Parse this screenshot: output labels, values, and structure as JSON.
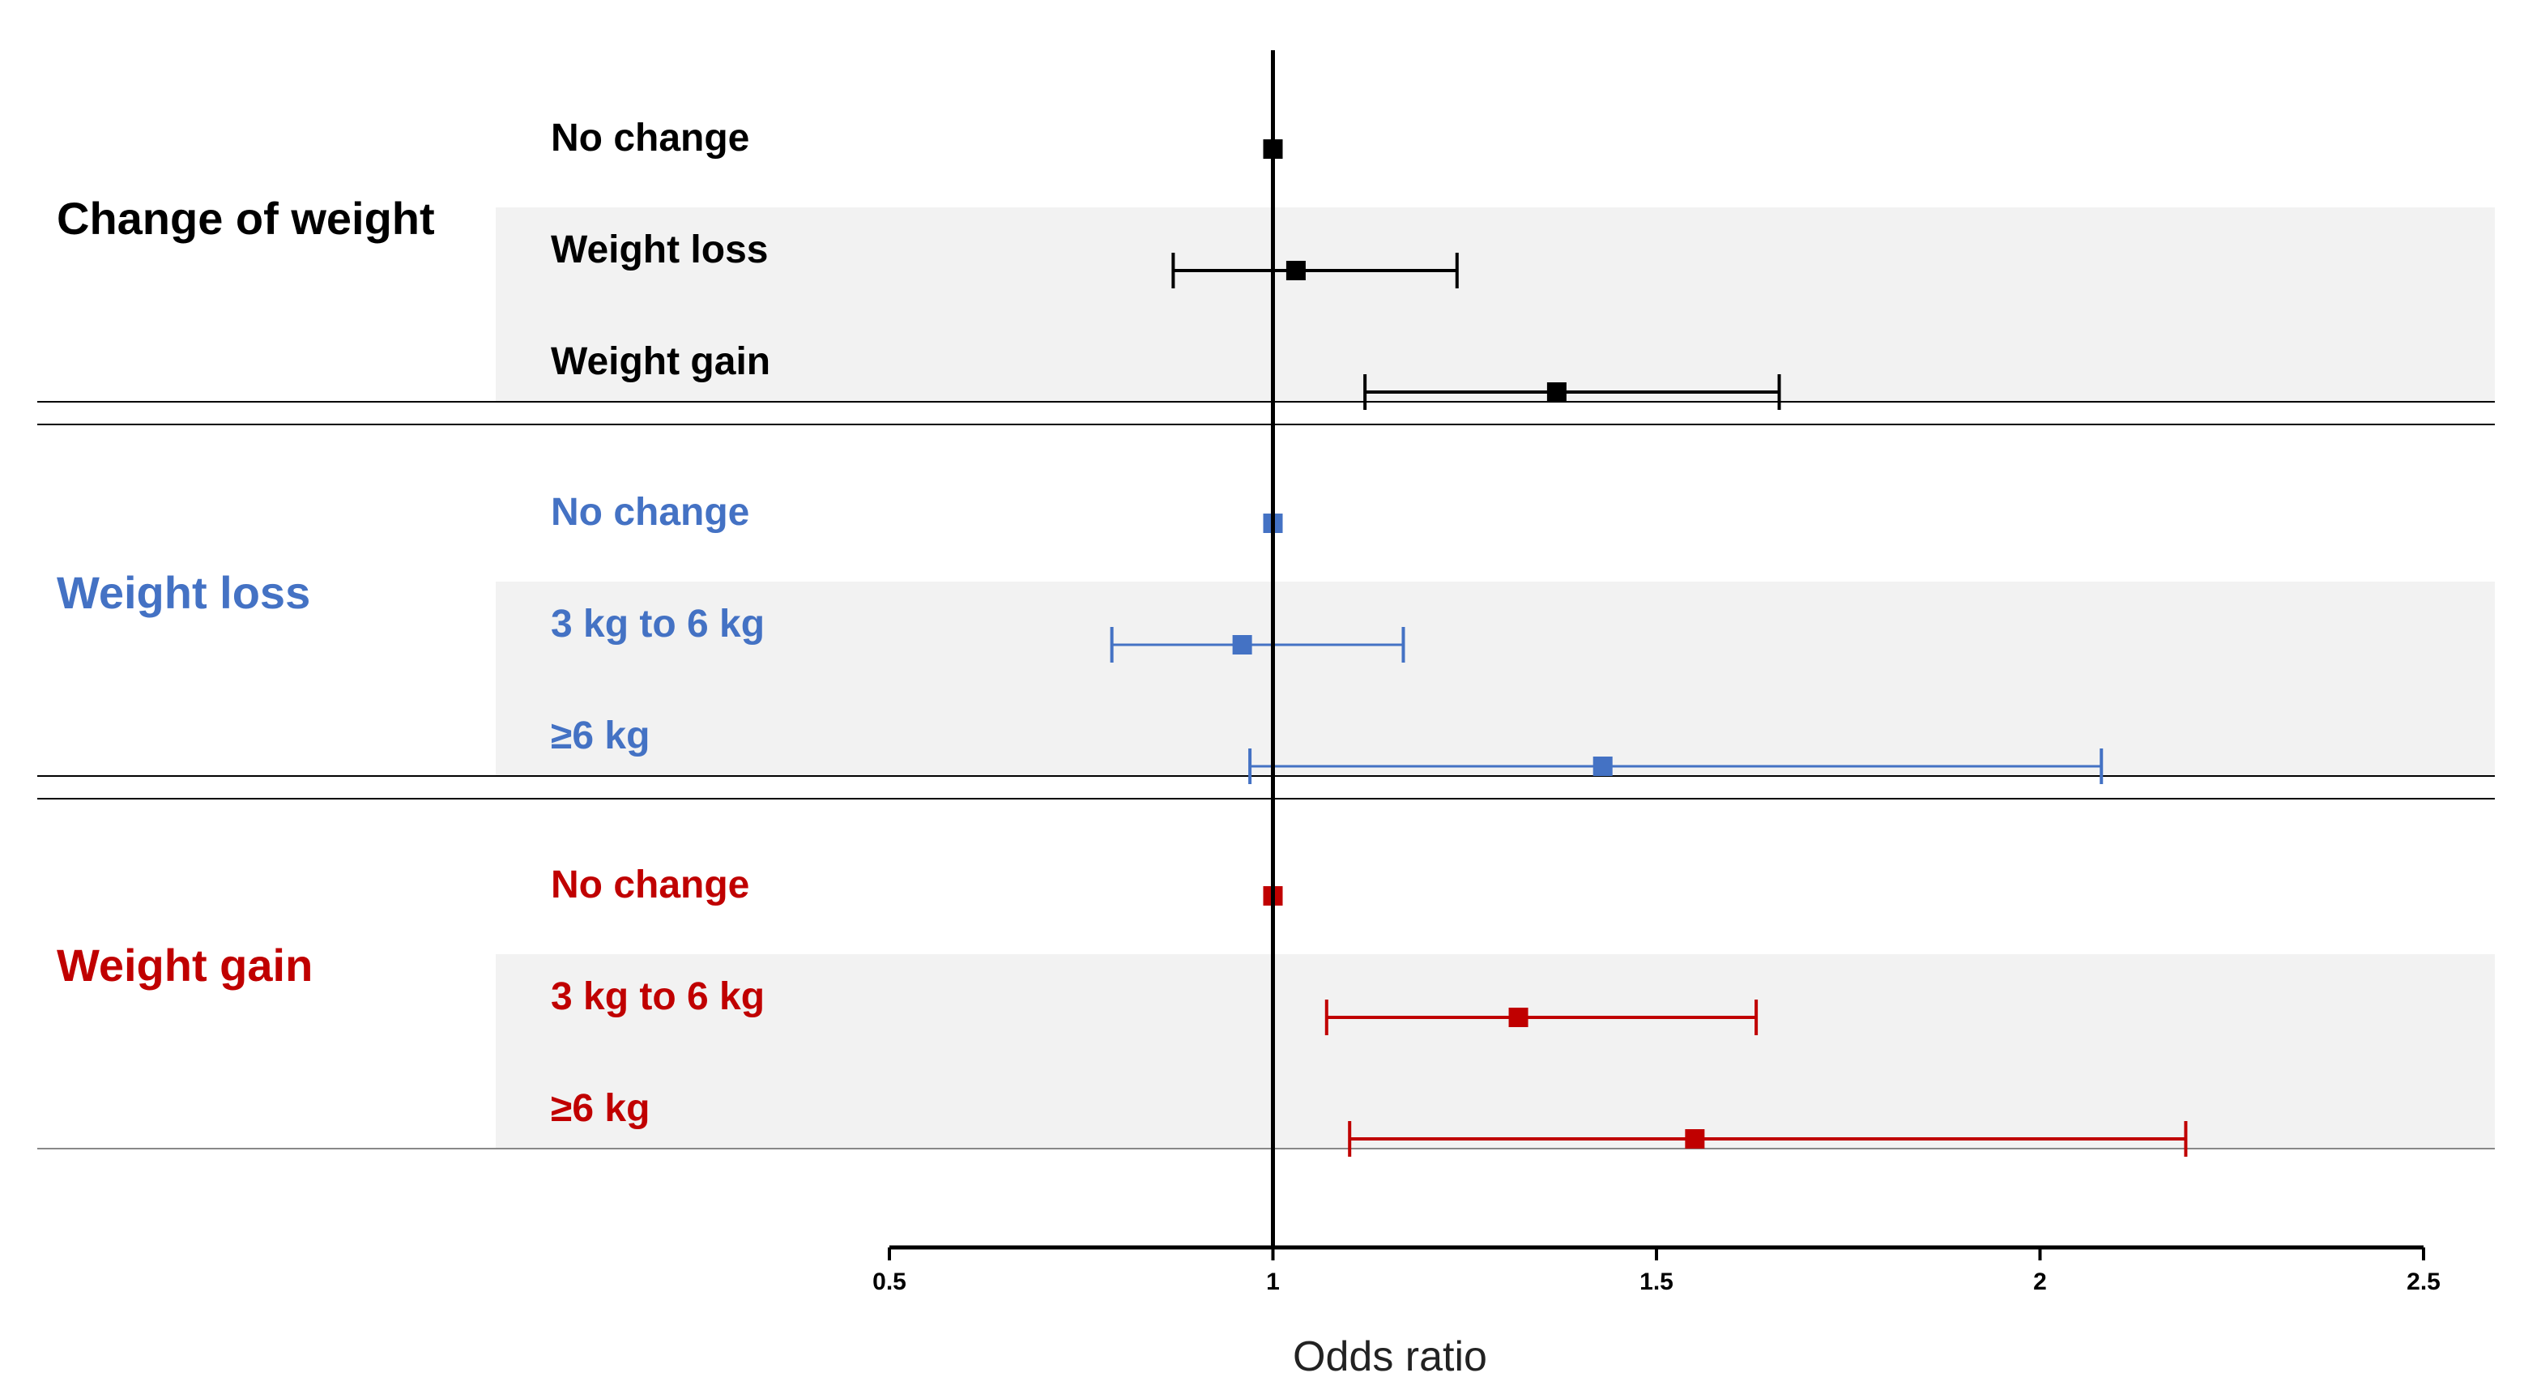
{
  "chart_data": {
    "type": "forest",
    "xlabel": "Odds ratio",
    "xlim": [
      0.5,
      2.5
    ],
    "ticks": [
      0.5,
      1,
      1.5,
      2,
      2.5
    ],
    "tick_labels": [
      "0.5",
      "1",
      "1.5",
      "2",
      "2.5"
    ],
    "reference_line": 1,
    "groups": [
      {
        "name": "Change of weight",
        "color": "#000000",
        "rows": [
          {
            "label": "No change",
            "or": 1.0,
            "lower": null,
            "upper": null
          },
          {
            "label": "Weight loss",
            "or": 1.03,
            "lower": 0.87,
            "upper": 1.24
          },
          {
            "label": "Weight gain",
            "or": 1.37,
            "lower": 1.12,
            "upper": 1.66
          }
        ]
      },
      {
        "name": "Weight loss",
        "color": "#4472C4",
        "rows": [
          {
            "label": "No change",
            "or": 1.0,
            "lower": null,
            "upper": null
          },
          {
            "label": "3 kg to 6 kg",
            "or": 0.96,
            "lower": 0.79,
            "upper": 1.17
          },
          {
            "label": "≥6 kg",
            "or": 1.43,
            "lower": 0.97,
            "upper": 2.08
          }
        ]
      },
      {
        "name": "Weight gain",
        "color": "#C00000",
        "rows": [
          {
            "label": "No change",
            "or": 1.0,
            "lower": null,
            "upper": null
          },
          {
            "label": "3 kg to 6 kg",
            "or": 1.32,
            "lower": 1.07,
            "upper": 1.63
          },
          {
            "label": "≥6 kg",
            "or": 1.55,
            "lower": 1.1,
            "upper": 2.19
          }
        ]
      }
    ]
  }
}
